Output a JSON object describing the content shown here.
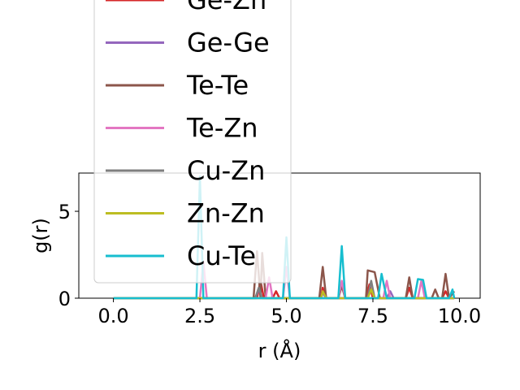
{
  "chart_data": {
    "type": "line",
    "title": "",
    "xlabel": "r (Å)",
    "ylabel": "g(r)",
    "xlim": [
      -1.0,
      10.6
    ],
    "ylim": [
      0,
      7.2
    ],
    "xticks": [
      0.0,
      2.5,
      5.0,
      7.5,
      10.0
    ],
    "xtick_labels": [
      "0.0",
      "2.5",
      "5.0",
      "7.5",
      "10.0"
    ],
    "yticks": [
      0,
      5
    ],
    "ytick_labels": [
      "0",
      "5"
    ],
    "grid": false,
    "legend_position": "upper-left",
    "series": [
      {
        "name": "Ge-Zn",
        "color": "#d62728",
        "points": [
          [
            0,
            0
          ],
          [
            2.4,
            0
          ],
          [
            2.5,
            0
          ],
          [
            2.6,
            0
          ],
          [
            4.0,
            0
          ],
          [
            4.15,
            0
          ],
          [
            4.25,
            1.0
          ],
          [
            4.35,
            0
          ],
          [
            4.6,
            0
          ],
          [
            4.7,
            0.4
          ],
          [
            4.8,
            0
          ],
          [
            6.0,
            0
          ],
          [
            6.05,
            0.6
          ],
          [
            6.15,
            0
          ],
          [
            7.3,
            0
          ],
          [
            7.4,
            0.8
          ],
          [
            7.5,
            0
          ],
          [
            8.45,
            0
          ],
          [
            8.55,
            0.6
          ],
          [
            8.65,
            0
          ],
          [
            9.5,
            0
          ],
          [
            9.6,
            0.4
          ],
          [
            9.7,
            0
          ],
          [
            9.85,
            0
          ]
        ]
      },
      {
        "name": "Ge-Ge",
        "color": "#9467bd",
        "points": [
          [
            0,
            0
          ],
          [
            4.1,
            0
          ],
          [
            4.2,
            0.5
          ],
          [
            4.3,
            0
          ],
          [
            6.0,
            0
          ],
          [
            6.05,
            0.3
          ],
          [
            6.15,
            0
          ],
          [
            7.9,
            0
          ],
          [
            8.0,
            0.4
          ],
          [
            8.1,
            0
          ],
          [
            9.85,
            0
          ]
        ]
      },
      {
        "name": "Te-Te",
        "color": "#8c564b",
        "points": [
          [
            0,
            0
          ],
          [
            4.05,
            0
          ],
          [
            4.15,
            2.7
          ],
          [
            4.25,
            0
          ],
          [
            4.3,
            2.6
          ],
          [
            4.4,
            0
          ],
          [
            5.95,
            0
          ],
          [
            6.05,
            1.8
          ],
          [
            6.15,
            0
          ],
          [
            6.5,
            0
          ],
          [
            6.6,
            0.7
          ],
          [
            6.7,
            0
          ],
          [
            7.3,
            0
          ],
          [
            7.35,
            1.6
          ],
          [
            7.55,
            1.5
          ],
          [
            7.7,
            0
          ],
          [
            8.45,
            0
          ],
          [
            8.55,
            1.2
          ],
          [
            8.65,
            0
          ],
          [
            9.2,
            0
          ],
          [
            9.3,
            0.5
          ],
          [
            9.4,
            0
          ],
          [
            9.5,
            0
          ],
          [
            9.6,
            1.4
          ],
          [
            9.7,
            0
          ],
          [
            9.85,
            0.4
          ]
        ]
      },
      {
        "name": "Te-Zn",
        "color": "#e377c2",
        "points": [
          [
            0,
            0
          ],
          [
            2.5,
            0
          ],
          [
            2.6,
            2.1
          ],
          [
            2.7,
            0
          ],
          [
            4.4,
            0
          ],
          [
            4.5,
            1.2
          ],
          [
            4.6,
            0
          ],
          [
            4.9,
            0
          ],
          [
            5.0,
            1.8
          ],
          [
            5.1,
            0
          ],
          [
            6.5,
            0
          ],
          [
            6.6,
            1.0
          ],
          [
            6.7,
            0
          ],
          [
            7.8,
            0
          ],
          [
            7.9,
            1.0
          ],
          [
            8.0,
            0
          ],
          [
            8.8,
            0
          ],
          [
            8.9,
            1.0
          ],
          [
            9.0,
            0
          ],
          [
            9.85,
            0
          ]
        ]
      },
      {
        "name": "Cu-Zn",
        "color": "#7f7f7f",
        "points": [
          [
            0,
            0
          ],
          [
            4.1,
            0
          ],
          [
            4.2,
            0.6
          ],
          [
            4.3,
            0
          ],
          [
            7.35,
            0
          ],
          [
            7.45,
            1.0
          ],
          [
            7.55,
            0
          ],
          [
            9.85,
            0
          ]
        ]
      },
      {
        "name": "Zn-Zn",
        "color": "#bcbd22",
        "points": [
          [
            0,
            0
          ],
          [
            6.0,
            0
          ],
          [
            6.05,
            0.4
          ],
          [
            6.15,
            0
          ],
          [
            7.35,
            0
          ],
          [
            7.45,
            0.5
          ],
          [
            7.55,
            0
          ],
          [
            9.85,
            0
          ]
        ]
      },
      {
        "name": "Cu-Te",
        "color": "#17becf",
        "points": [
          [
            0,
            0
          ],
          [
            2.4,
            0
          ],
          [
            2.5,
            7.0
          ],
          [
            2.6,
            0
          ],
          [
            4.9,
            0
          ],
          [
            5.0,
            3.5
          ],
          [
            5.1,
            0
          ],
          [
            6.5,
            0
          ],
          [
            6.6,
            3.0
          ],
          [
            6.7,
            0
          ],
          [
            7.65,
            0
          ],
          [
            7.75,
            1.4
          ],
          [
            7.9,
            0
          ],
          [
            8.7,
            0
          ],
          [
            8.8,
            1.1
          ],
          [
            8.95,
            1.05
          ],
          [
            9.05,
            0
          ],
          [
            9.7,
            0
          ],
          [
            9.8,
            0.5
          ],
          [
            9.85,
            0
          ]
        ]
      }
    ]
  }
}
